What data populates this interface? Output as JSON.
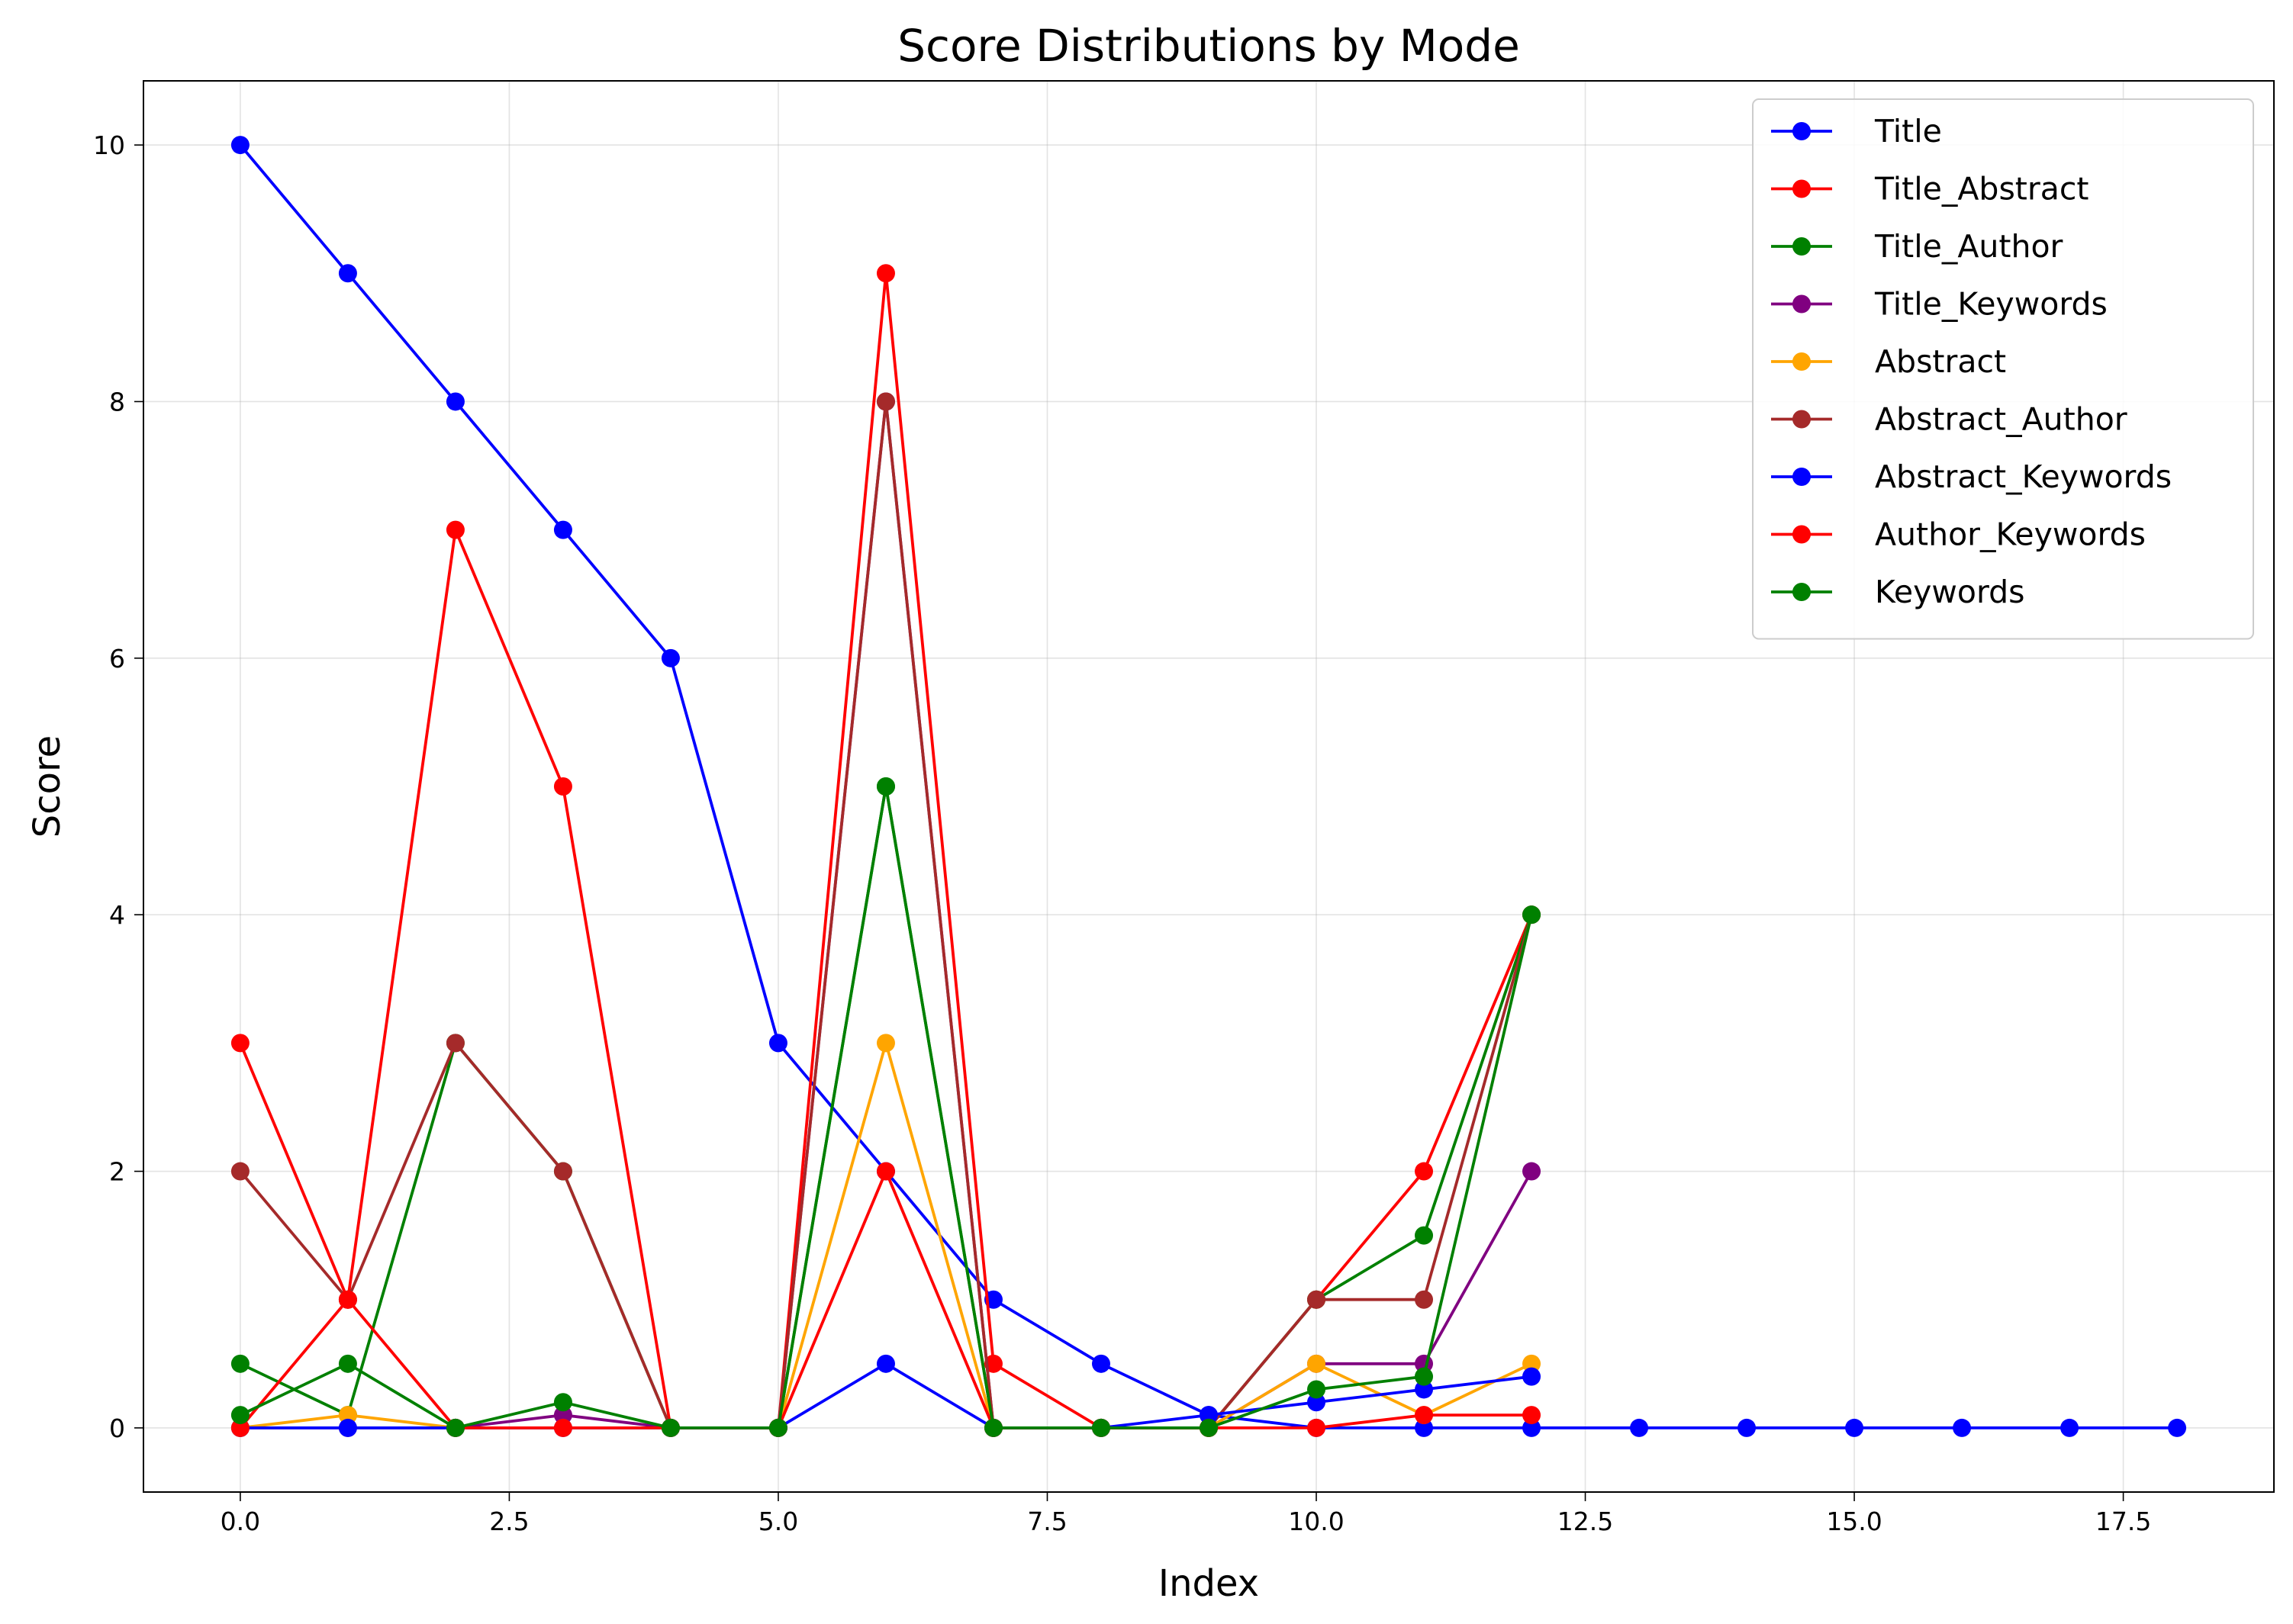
{
  "chart_data": {
    "type": "line",
    "title": "Score Distributions by Mode",
    "xlabel": "Index",
    "ylabel": "Score",
    "xlim": [
      -0.9,
      18.9
    ],
    "ylim": [
      -0.5,
      10.5
    ],
    "xticks": [
      0.0,
      2.5,
      5.0,
      7.5,
      10.0,
      12.5,
      15.0,
      17.5
    ],
    "xtick_labels": [
      "0.0",
      "2.5",
      "5.0",
      "7.5",
      "10.0",
      "12.5",
      "15.0",
      "17.5"
    ],
    "yticks": [
      0,
      2,
      4,
      6,
      8,
      10
    ],
    "ytick_labels": [
      "0",
      "2",
      "4",
      "6",
      "8",
      "10"
    ],
    "grid": true,
    "legend_position": "top-right",
    "marker": "circle",
    "series": [
      {
        "name": "Title",
        "color": "#0000ff",
        "x": [
          0,
          1,
          2,
          3,
          4,
          5,
          6,
          7,
          8,
          9,
          10,
          11,
          12,
          13,
          14,
          15,
          16,
          17,
          18
        ],
        "values": [
          10,
          9,
          8,
          7,
          6,
          3,
          2,
          1,
          0.5,
          0.1,
          0,
          0,
          0,
          0,
          0,
          0,
          0,
          0,
          0
        ]
      },
      {
        "name": "Title_Abstract",
        "color": "#ff0000",
        "x": [
          0,
          1,
          2,
          3,
          4,
          5,
          6,
          7,
          8,
          9,
          10,
          11,
          12
        ],
        "values": [
          3,
          1,
          7,
          5,
          0,
          0,
          9,
          0.5,
          0,
          0,
          1,
          2,
          4
        ]
      },
      {
        "name": "Title_Author",
        "color": "#008000",
        "x": [
          0,
          1,
          2,
          3,
          4,
          5,
          6,
          7,
          8,
          9,
          10,
          11,
          12
        ],
        "values": [
          0.5,
          0.1,
          3,
          2,
          0,
          0,
          5,
          0,
          0,
          0,
          1,
          1.5,
          4
        ]
      },
      {
        "name": "Title_Keywords",
        "color": "#800080",
        "x": [
          0,
          1,
          2,
          3,
          4,
          5,
          6,
          7,
          8,
          9,
          10,
          11,
          12
        ],
        "values": [
          0,
          0,
          0,
          0.1,
          0,
          0,
          8,
          0,
          0,
          0,
          0.5,
          0.5,
          2
        ]
      },
      {
        "name": "Abstract",
        "color": "#ffa500",
        "x": [
          0,
          1,
          2,
          3,
          4,
          5,
          6,
          7,
          8,
          9,
          10,
          11,
          12
        ],
        "values": [
          0,
          0.1,
          0,
          0,
          0,
          0,
          3,
          0,
          0,
          0,
          0.5,
          0.1,
          0.5
        ]
      },
      {
        "name": "Abstract_Author",
        "color": "#a52a2a",
        "x": [
          0,
          1,
          2,
          3,
          4,
          5,
          6,
          7,
          8,
          9,
          10,
          11,
          12
        ],
        "values": [
          2,
          1,
          3,
          2,
          0,
          0,
          8,
          0,
          0,
          0,
          1,
          1,
          4
        ]
      },
      {
        "name": "Abstract_Keywords",
        "color": "#0000ff",
        "x": [
          0,
          1,
          2,
          3,
          4,
          5,
          6,
          7,
          8,
          9,
          10,
          11,
          12
        ],
        "values": [
          0,
          0,
          0,
          0,
          0,
          0,
          0.5,
          0,
          0,
          0.1,
          0.2,
          0.3,
          0.4
        ]
      },
      {
        "name": "Author_Keywords",
        "color": "#ff0000",
        "x": [
          0,
          1,
          2,
          3,
          4,
          5,
          6,
          7,
          8,
          9,
          10,
          11,
          12
        ],
        "values": [
          0,
          1,
          0,
          0,
          0,
          0,
          2,
          0,
          0,
          0,
          0,
          0.1,
          0.1
        ]
      },
      {
        "name": "Keywords",
        "color": "#008000",
        "x": [
          0,
          1,
          2,
          3,
          4,
          5,
          6,
          7,
          8,
          9,
          10,
          11,
          12
        ],
        "values": [
          0.1,
          0.5,
          0,
          0.2,
          0,
          0,
          5,
          0,
          0,
          0,
          0.3,
          0.4,
          4
        ]
      }
    ]
  }
}
